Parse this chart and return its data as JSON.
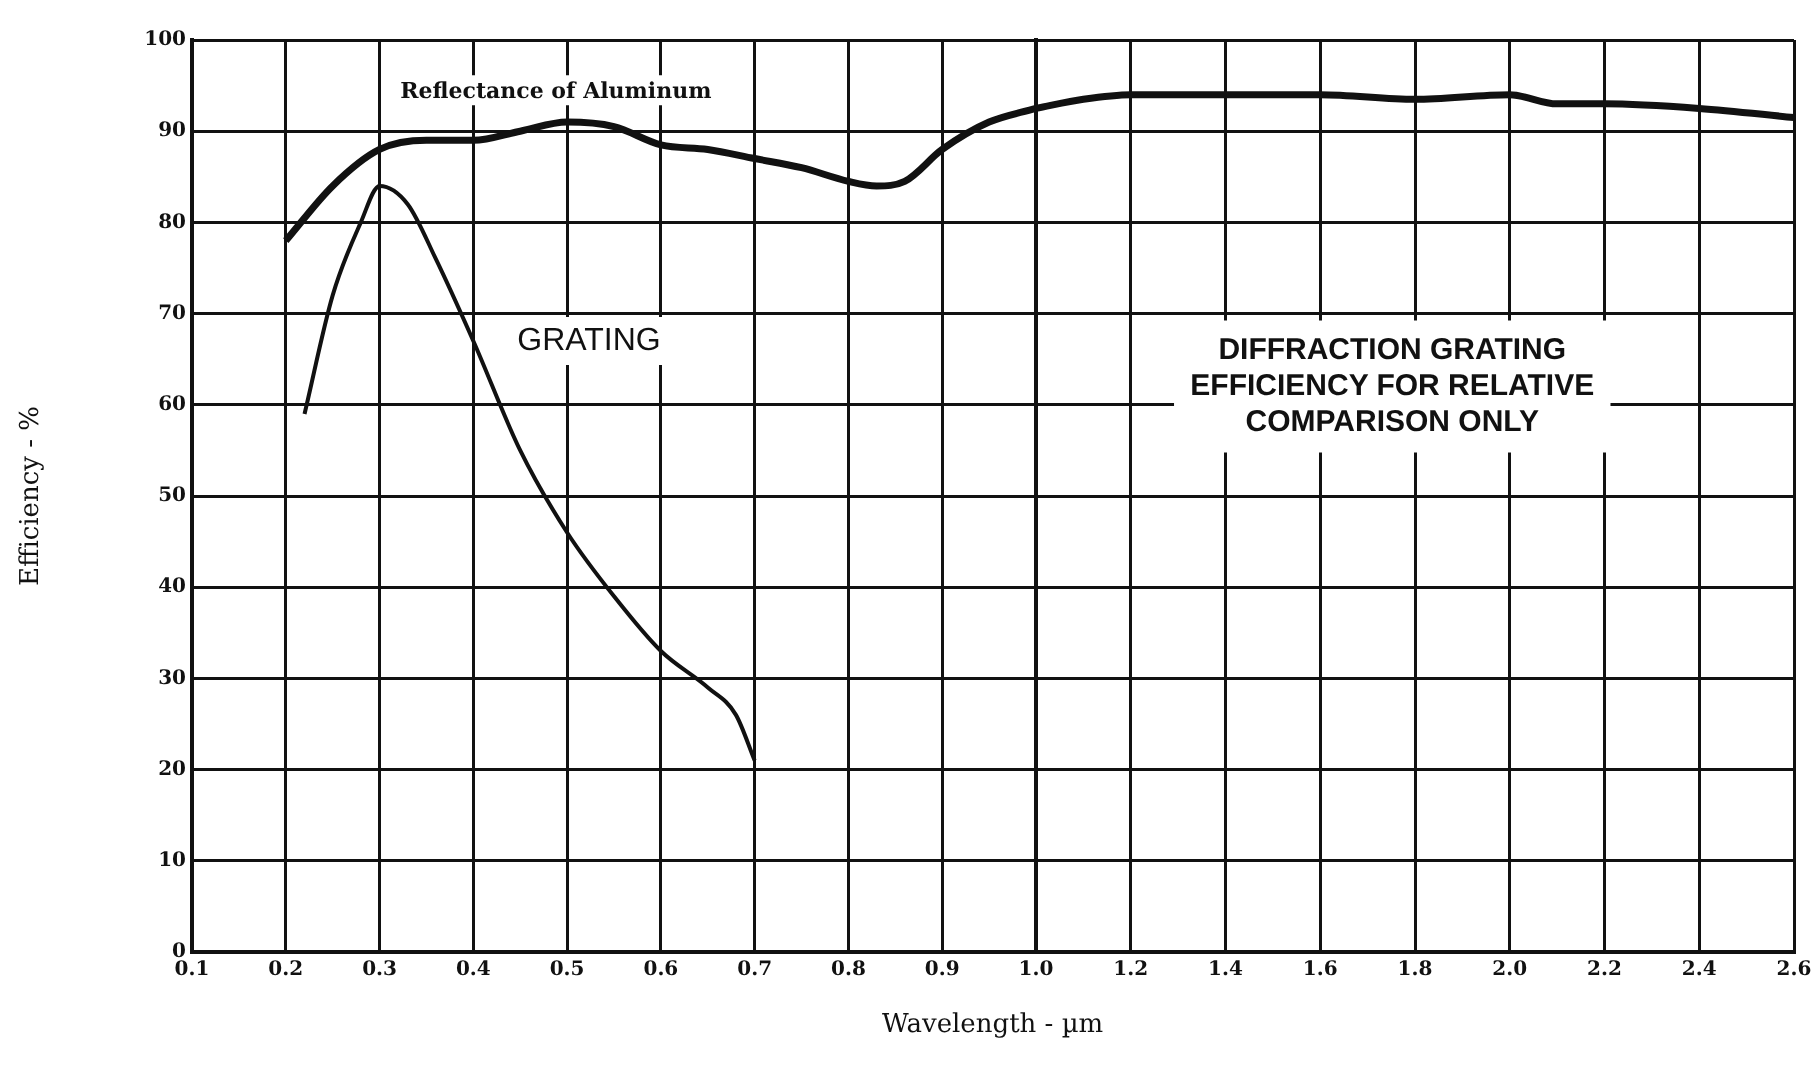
{
  "chart_data": [
    {
      "type": "line",
      "xlabel": "Wavelength - µm",
      "ylabel": "Efficiency - %",
      "series": [
        {
          "name": "Reflectance of Aluminum",
          "color": "#111111",
          "x": [
            0.2,
            0.25,
            0.3,
            0.35,
            0.4,
            0.45,
            0.5,
            0.55,
            0.6,
            0.65,
            0.7,
            0.75,
            0.8,
            0.83,
            0.86,
            0.9,
            0.95,
            1.0
          ],
          "values": [
            78,
            84,
            88,
            89,
            89,
            90,
            91,
            90.5,
            88.5,
            88,
            87,
            86,
            84.5,
            84,
            84.5,
            88,
            91,
            92.5
          ]
        },
        {
          "name": "GRATING",
          "color": "#111111",
          "x": [
            0.22,
            0.25,
            0.28,
            0.3,
            0.33,
            0.36,
            0.4,
            0.45,
            0.5,
            0.55,
            0.6,
            0.65,
            0.68,
            0.7
          ],
          "values": [
            59,
            72,
            80,
            84,
            82,
            76,
            67,
            55,
            46,
            39,
            33,
            29,
            26,
            21
          ]
        }
      ],
      "xlim": [
        0.1,
        1.0
      ],
      "xticks": [
        0.1,
        0.2,
        0.3,
        0.4,
        0.5,
        0.6,
        0.7,
        0.8,
        0.9,
        {
          "value": 1.0,
          "label": "1.0"
        }
      ],
      "ylim": [
        0,
        100
      ],
      "yticks": [
        0,
        10,
        20,
        30,
        40,
        50,
        60,
        70,
        80,
        90,
        100
      ],
      "grid": true,
      "legend": false,
      "marker": "none",
      "line_style": "solid"
    },
    {
      "type": "line",
      "series": [
        {
          "color": "#111111",
          "x": [
            1.0,
            1.1,
            1.2,
            1.4,
            1.6,
            1.8,
            2.0,
            2.1,
            2.2,
            2.4,
            2.6
          ],
          "values": [
            92.5,
            93.5,
            94,
            94,
            94,
            93.5,
            94,
            93,
            93,
            92.5,
            91.5
          ]
        }
      ],
      "xlim": [
        1.0,
        2.6
      ],
      "xticks": [
        1.2,
        1.4,
        1.6,
        1.8,
        {
          "value": 2.0,
          "label": "2.0"
        },
        2.2,
        2.4,
        2.6
      ],
      "ylim": [
        0,
        100
      ],
      "yticks": [
        0,
        10,
        20,
        30,
        40,
        50,
        60,
        70,
        80,
        90,
        100
      ],
      "grid": true,
      "legend": false,
      "marker": "none",
      "line_style": "solid",
      "tick_labels": "x",
      "annotations": [
        "DIFFRACTION GRATING EFFICIENCY FOR RELATIVE COMPARISON ONLY"
      ]
    }
  ]
}
